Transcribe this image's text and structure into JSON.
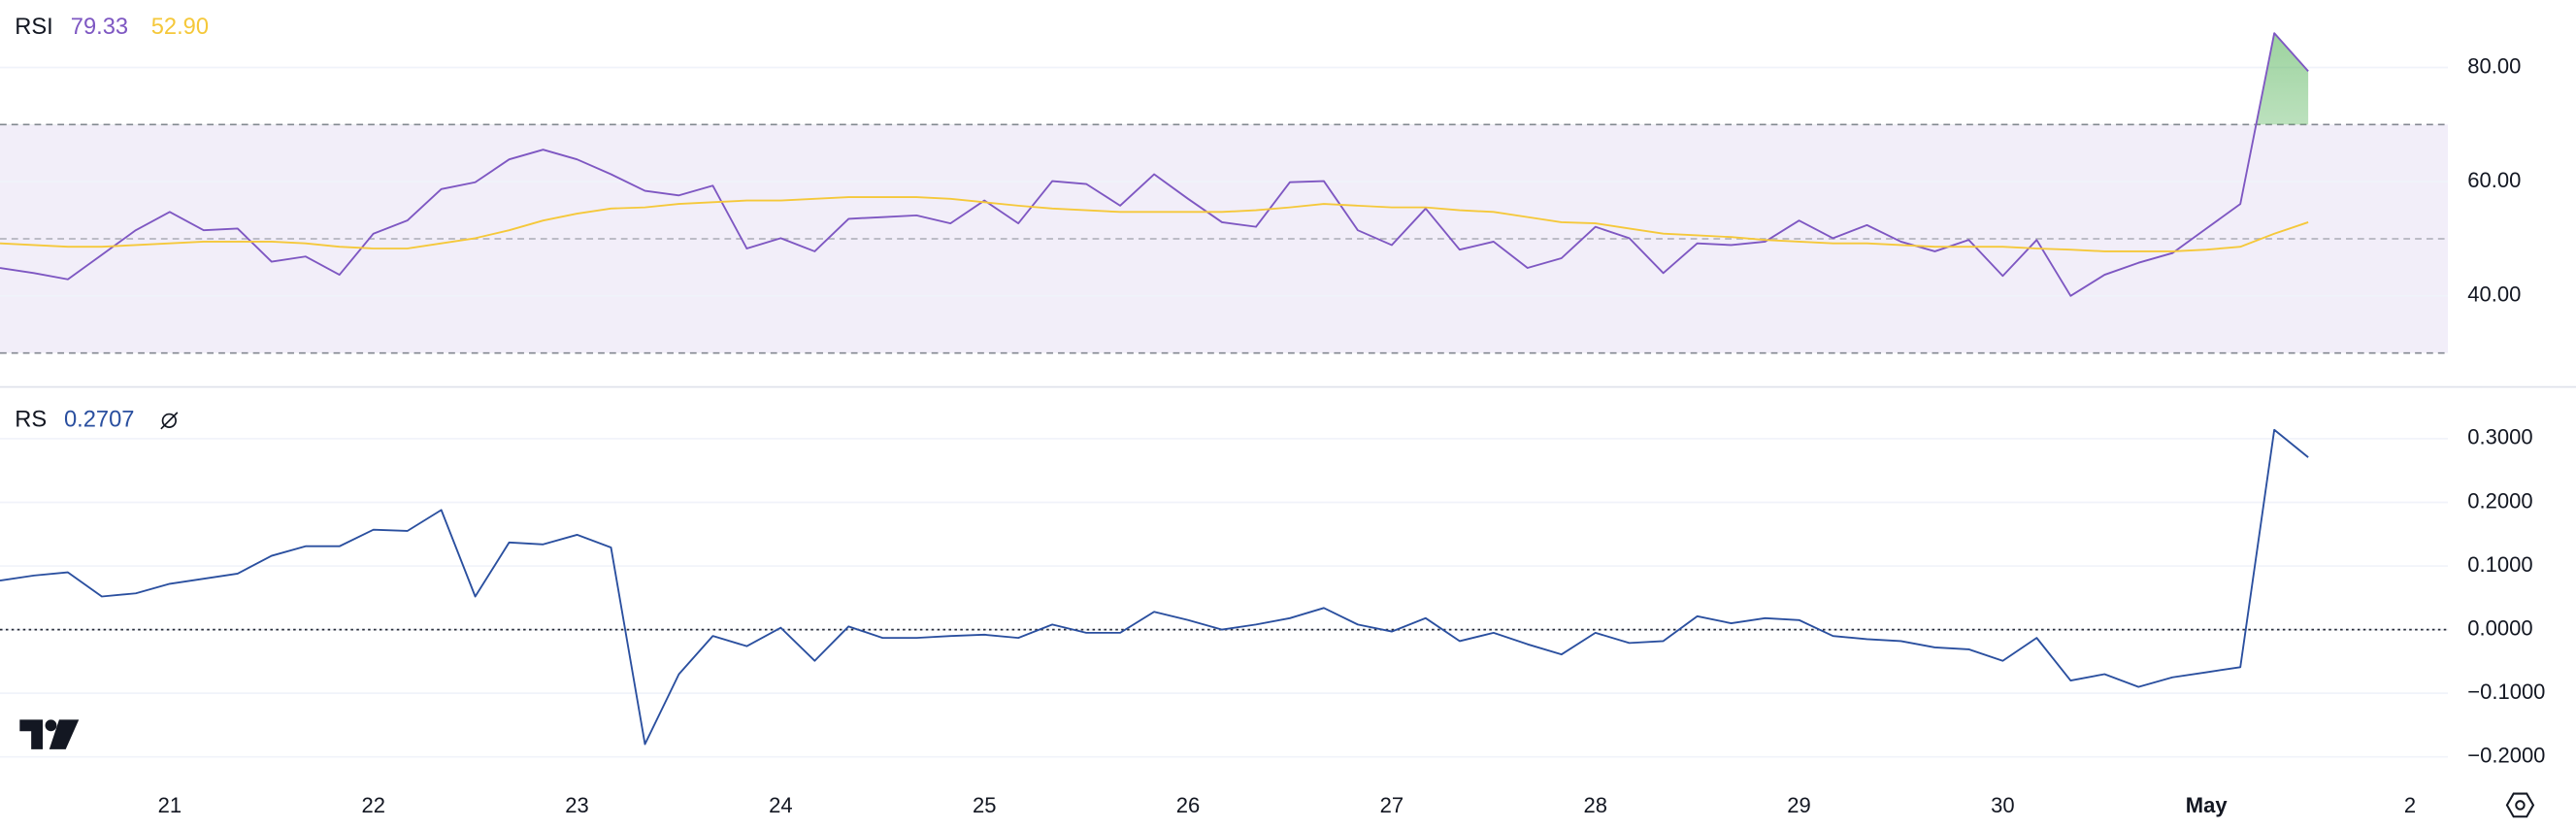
{
  "chart_data": [
    {
      "type": "line",
      "title": "RSI",
      "ylim": [
        24.2,
        91.8
      ],
      "yticks": [
        {
          "value": 40,
          "label": "40.00"
        },
        {
          "value": 60,
          "label": "60.00"
        },
        {
          "value": 80,
          "label": "80.00"
        }
      ],
      "grid": true,
      "levels": [
        70,
        50,
        30
      ],
      "level_color": "#787b86",
      "band_color": "#7e57c2",
      "overbought_color": "#4caf50",
      "series": [
        {
          "color": "#7e57c2",
          "values": [
            44.9,
            44.0,
            42.9,
            47.2,
            51.5,
            54.7,
            51.5,
            51.8,
            46.0,
            46.9,
            43.7,
            50.9,
            53.2,
            58.7,
            59.9,
            63.9,
            65.6,
            63.9,
            61.3,
            58.4,
            57.6,
            59.3,
            48.3,
            50.1,
            47.8,
            53.5,
            53.8,
            54.1,
            52.7,
            56.7,
            52.7,
            60.1,
            59.6,
            55.8,
            61.3,
            57.0,
            52.9,
            52.1,
            59.9,
            60.1,
            51.5,
            48.9,
            55.3,
            48.1,
            49.5,
            44.9,
            46.6,
            52.1,
            50.1,
            44.0,
            49.2,
            48.9,
            49.5,
            53.2,
            50.1,
            52.4,
            49.5,
            47.8,
            49.8,
            43.5,
            49.8,
            40.0,
            43.7,
            45.8,
            47.5,
            51.8,
            56.1,
            86.0,
            79.33,
            null,
            null,
            null
          ]
        },
        {
          "color": "#f5c83a",
          "values": [
            49.2,
            48.9,
            48.6,
            48.6,
            48.9,
            49.2,
            49.5,
            49.5,
            49.5,
            49.2,
            48.6,
            48.3,
            48.3,
            49.2,
            50.1,
            51.5,
            53.2,
            54.4,
            55.3,
            55.5,
            56.1,
            56.4,
            56.7,
            56.7,
            57.0,
            57.3,
            57.3,
            57.3,
            57.0,
            56.4,
            55.8,
            55.3,
            55.0,
            54.7,
            54.7,
            54.7,
            54.7,
            55.0,
            55.5,
            56.1,
            55.8,
            55.5,
            55.5,
            55.0,
            54.7,
            53.8,
            52.9,
            52.7,
            51.8,
            50.9,
            50.6,
            50.3,
            49.8,
            49.5,
            49.2,
            49.2,
            48.9,
            48.6,
            48.6,
            48.6,
            48.3,
            48.1,
            47.8,
            47.8,
            47.8,
            48.1,
            48.6,
            50.9,
            52.9,
            null,
            null,
            null
          ],
          "value_labels": [
            null,
            null,
            null,
            null,
            null,
            null,
            null,
            null,
            null,
            null,
            null,
            null,
            null,
            null,
            null,
            null,
            null,
            null,
            null,
            null,
            null,
            null,
            null,
            null,
            null,
            null,
            null,
            null,
            null,
            null,
            null,
            null,
            null,
            null,
            null,
            null,
            null,
            null,
            null,
            null,
            null,
            null,
            null,
            null,
            null,
            null,
            null,
            null,
            null,
            null,
            null,
            null,
            null,
            null,
            null,
            null,
            null,
            null,
            null,
            null,
            null,
            null,
            null,
            null,
            null,
            null,
            null,
            null,
            "52.90",
            null,
            null,
            null
          ]
        }
      ]
    },
    {
      "type": "line",
      "title": "RS",
      "categories": [
        null,
        null,
        null,
        null,
        null,
        "21",
        null,
        null,
        null,
        null,
        null,
        "22",
        null,
        null,
        null,
        null,
        null,
        "23",
        null,
        null,
        null,
        null,
        null,
        "24",
        null,
        null,
        null,
        null,
        null,
        "25",
        null,
        null,
        null,
        null,
        null,
        "26",
        null,
        null,
        null,
        null,
        null,
        "27",
        null,
        null,
        null,
        null,
        null,
        "28",
        null,
        null,
        null,
        null,
        null,
        "29",
        null,
        null,
        null,
        null,
        null,
        "30",
        null,
        null,
        null,
        null,
        null,
        "May",
        null,
        null,
        null,
        null,
        null,
        "2"
      ],
      "ylim": [
        -0.25,
        0.38
      ],
      "yticks": [
        {
          "value": -0.2,
          "label": "−0.2000"
        },
        {
          "value": -0.1,
          "label": "−0.1000"
        },
        {
          "value": 0,
          "label": "0.0000"
        },
        {
          "value": 0.1,
          "label": "0.1000"
        },
        {
          "value": 0.2,
          "label": "0.2000"
        },
        {
          "value": 0.3,
          "label": "0.3000"
        }
      ],
      "grid": true,
      "levels": [
        0
      ],
      "level_color": "#131722",
      "series": [
        {
          "color": "#2a4f9f",
          "values": [
            0.077,
            0.085,
            0.09,
            0.052,
            0.057,
            0.072,
            0.08,
            0.088,
            0.116,
            0.131,
            0.131,
            0.157,
            0.155,
            0.188,
            0.052,
            0.137,
            0.134,
            0.149,
            0.129,
            -0.18,
            -0.07,
            -0.01,
            -0.026,
            0.003,
            -0.049,
            0.005,
            -0.013,
            -0.013,
            -0.01,
            -0.008,
            -0.013,
            0.008,
            -0.005,
            -0.005,
            0.028,
            0.015,
            0.0,
            0.008,
            0.018,
            0.034,
            0.008,
            -0.003,
            0.018,
            -0.018,
            -0.005,
            -0.023,
            -0.039,
            -0.005,
            -0.021,
            -0.018,
            0.021,
            0.01,
            0.018,
            0.015,
            -0.01,
            -0.015,
            -0.018,
            -0.028,
            -0.031,
            -0.049,
            -0.013,
            -0.08,
            -0.07,
            -0.09,
            -0.075,
            -0.067,
            -0.059,
            0.314,
            0.2707,
            null,
            null,
            null
          ]
        }
      ]
    }
  ]
}
